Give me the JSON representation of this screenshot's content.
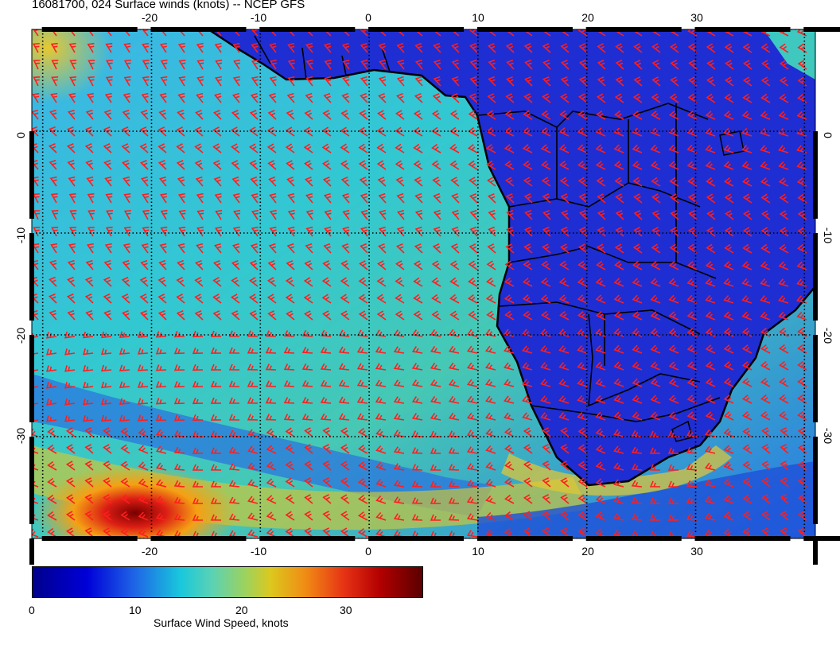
{
  "title": "16081700, 024 Surface winds (knots) -- NCEP GFS",
  "map": {
    "lon_range": [
      -31,
      41
    ],
    "lat_range": [
      -40,
      10
    ],
    "top_lon_ticks": [
      "-20",
      "-10",
      "0",
      "10",
      "20",
      "30"
    ],
    "bottom_lon_ticks": [
      "-20",
      "-10",
      "0",
      "10",
      "20",
      "30"
    ],
    "left_lat_ticks": [
      "0",
      "-10",
      "-20",
      "-30"
    ],
    "right_lat_ticks": [
      "0",
      "-10",
      "-20",
      "-30"
    ],
    "land_color": "#1e2ed2",
    "ocean_color": "#46c8dc",
    "barb_color": "#ff1e1e",
    "grid": "dotted"
  },
  "colorbar": {
    "title": "Surface Wind Speed, knots",
    "ticks": [
      "0",
      "10",
      "20",
      "30"
    ],
    "range": [
      0,
      36
    ]
  }
}
